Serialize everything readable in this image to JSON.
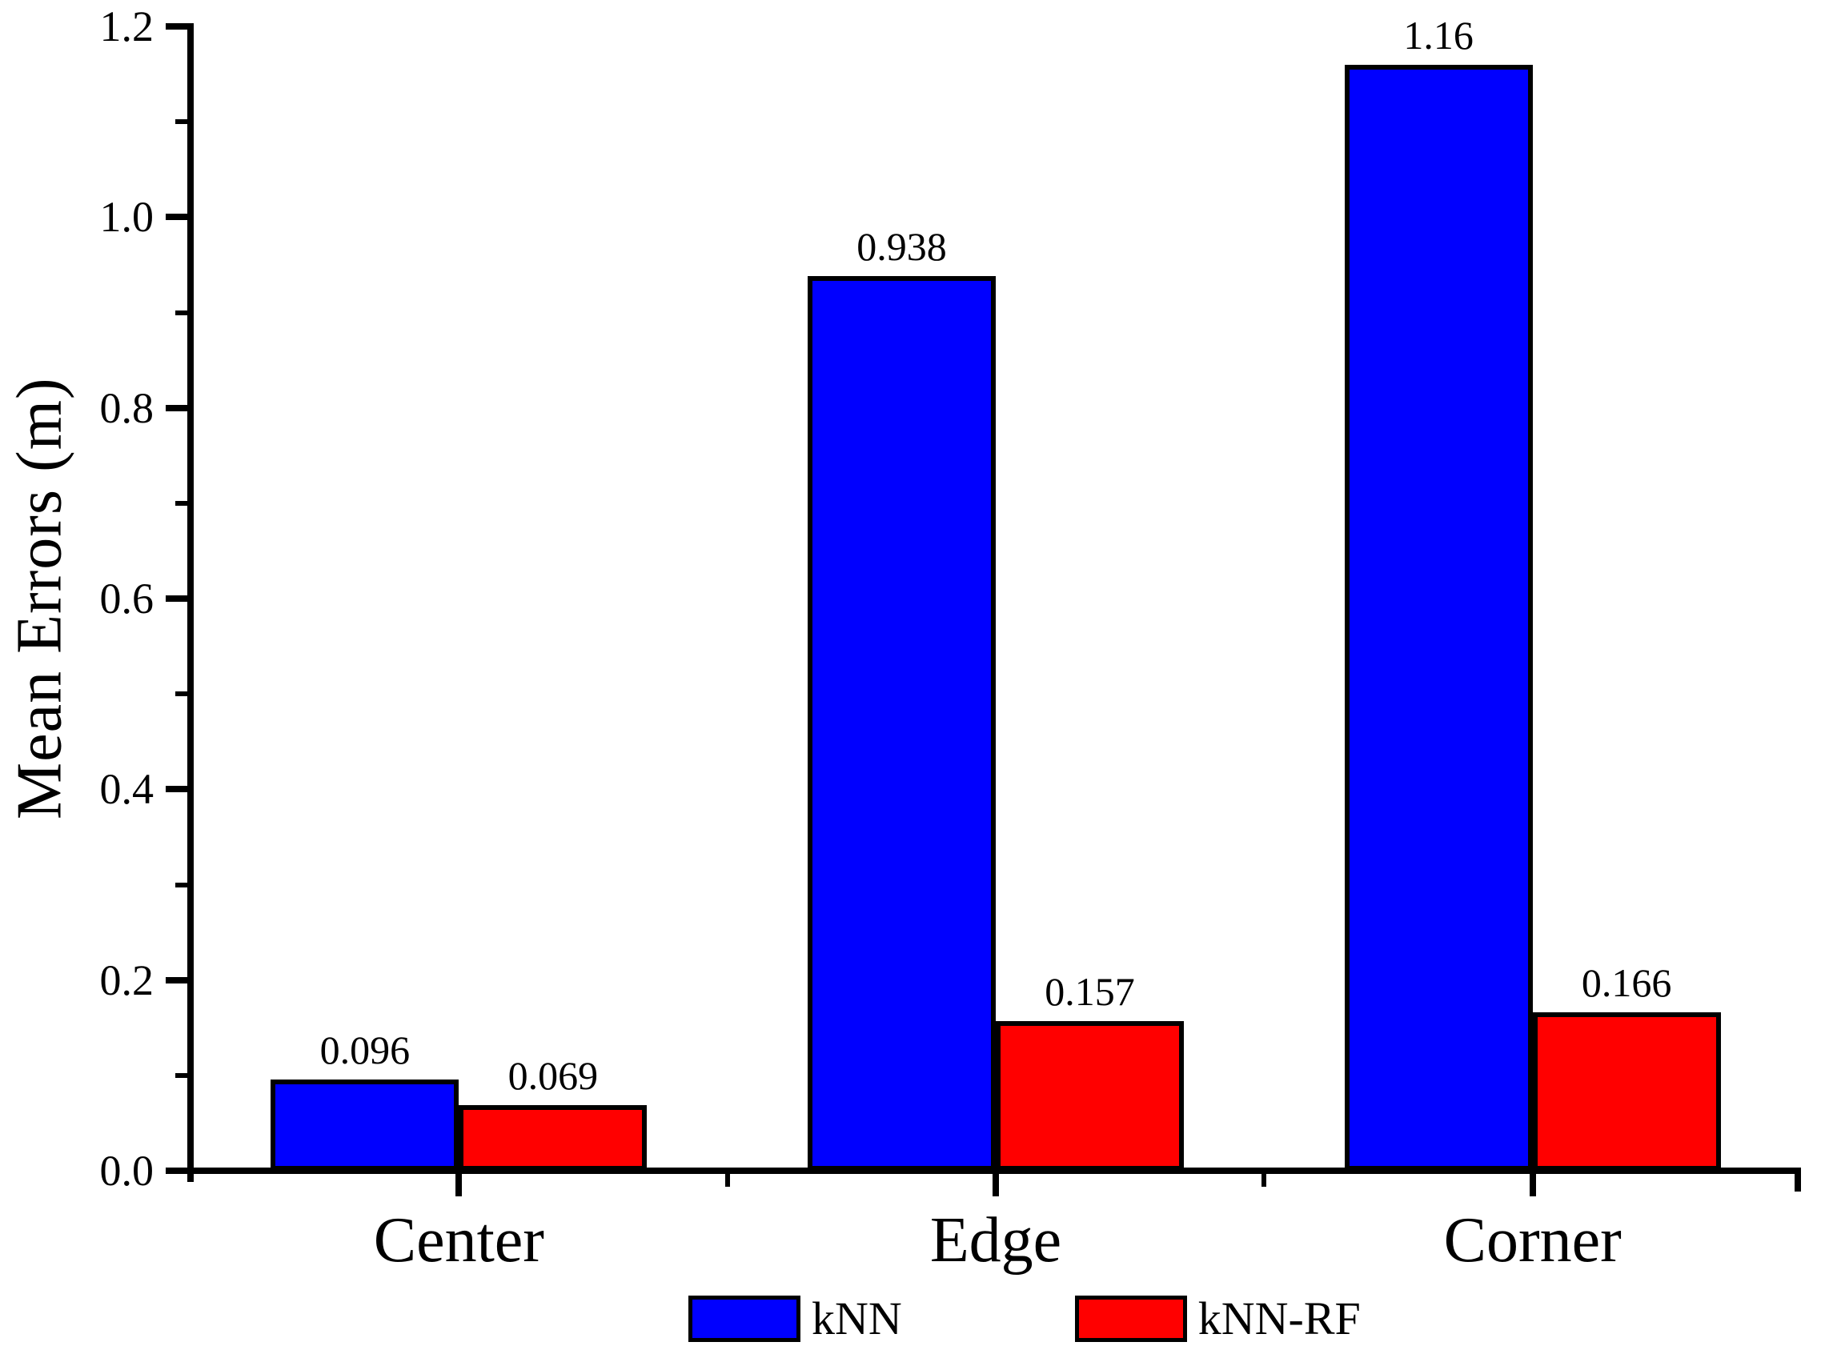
{
  "chart_data": {
    "type": "bar",
    "title": "",
    "xlabel": "",
    "ylabel": "Mean Errors (m)",
    "categories": [
      "Center",
      "Edge",
      "Corner"
    ],
    "series": [
      {
        "name": "kNN",
        "color": "#0000FF",
        "values": [
          0.096,
          0.938,
          1.16
        ],
        "labels": [
          "0.096",
          "0.938",
          "1.16"
        ]
      },
      {
        "name": "kNN-RF",
        "color": "#FF0000",
        "values": [
          0.069,
          0.157,
          0.166
        ],
        "labels": [
          "0.069",
          "0.157",
          "0.166"
        ]
      }
    ],
    "ylim": [
      0,
      1.2
    ],
    "ytick_step": 0.2,
    "yminor_step": 0.1,
    "ytick_labels": [
      "0.0",
      "0.2",
      "0.4",
      "0.6",
      "0.8",
      "1.0",
      "1.2"
    ],
    "grid": false,
    "bar_value_labels_shown": true,
    "legend_position": "bottom"
  },
  "colors": {
    "background": "#FFFFFF",
    "axis": "#000000",
    "bar_border": "#000000",
    "knn_blue": "#0000FF",
    "knnrf_red": "#FF0000"
  }
}
